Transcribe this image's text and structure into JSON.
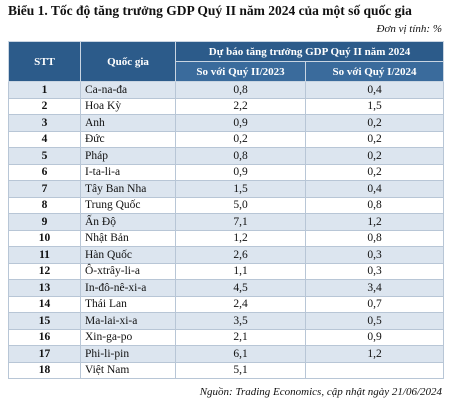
{
  "title": "Biểu 1. Tốc độ tăng trưởng GDP Quý II năm 2024 của một số quốc gia",
  "unit": "Đơn vị tính: %",
  "table": {
    "header": {
      "stt": "STT",
      "country": "Quốc gia",
      "group": "Dự báo tăng trưởng GDP Quý II năm 2024",
      "col1": "So với Quý II/2023",
      "col2": "So với Quý I/2024"
    },
    "rows": [
      [
        1,
        "Ca-na-đa",
        "0,8",
        "0,4"
      ],
      [
        2,
        "Hoa Kỳ",
        "2,2",
        "1,5"
      ],
      [
        3,
        "Anh",
        "0,9",
        "0,2"
      ],
      [
        4,
        "Đức",
        "0,2",
        "0,2"
      ],
      [
        5,
        "Pháp",
        "0,8",
        "0,2"
      ],
      [
        6,
        "I-ta-li-a",
        "0,9",
        "0,2"
      ],
      [
        7,
        "Tây Ban Nha",
        "1,5",
        "0,4"
      ],
      [
        8,
        "Trung Quốc",
        "5,0",
        "0,8"
      ],
      [
        9,
        "Ấn Độ",
        "7,1",
        "1,2"
      ],
      [
        10,
        "Nhật Bản",
        "1,2",
        "0,8"
      ],
      [
        11,
        "Hàn Quốc",
        "2,6",
        "0,3"
      ],
      [
        12,
        "Ô-xtrây-li-a",
        "1,1",
        "0,3"
      ],
      [
        13,
        "In-đô-nê-xi-a",
        "4,5",
        "3,4"
      ],
      [
        14,
        "Thái Lan",
        "2,4",
        "0,7"
      ],
      [
        15,
        "Ma-lai-xi-a",
        "3,5",
        "0,5"
      ],
      [
        16,
        "Xin-ga-po",
        "2,1",
        "0,9"
      ],
      [
        17,
        "Phi-li-pin",
        "6,1",
        "1,2"
      ],
      [
        18,
        "Việt Nam",
        "5,1",
        null
      ]
    ]
  },
  "source": "Nguồn: Trading Economics, cập nhật ngày 21/06/2024"
}
